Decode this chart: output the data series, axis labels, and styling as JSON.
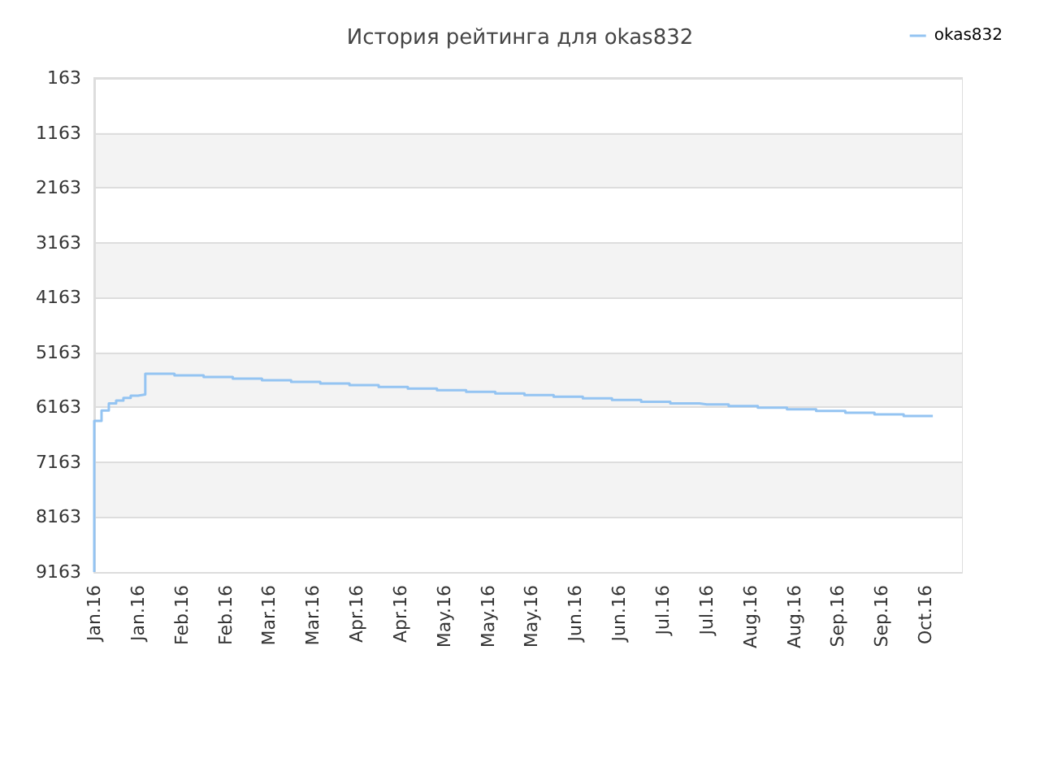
{
  "chart_data": {
    "type": "step",
    "title": "История рейтинга для okas832",
    "categories": [
      "Jan.16",
      null,
      null,
      null,
      null,
      null,
      "Jan.16",
      null,
      null,
      null,
      null,
      null,
      "Feb.16",
      null,
      null,
      null,
      null,
      null,
      "Feb.16",
      null,
      null,
      null,
      null,
      null,
      "Mar.16",
      null,
      null,
      null,
      null,
      null,
      "Mar.16",
      null,
      null,
      null,
      null,
      null,
      "Apr.16",
      null,
      null,
      null,
      null,
      null,
      "Apr.16",
      null,
      null,
      null,
      null,
      null,
      "May.16",
      null,
      null,
      null,
      null,
      null,
      "May.16",
      null,
      null,
      null,
      null,
      null,
      "May.16",
      null,
      null,
      null,
      null,
      null,
      "Jun.16",
      null,
      null,
      null,
      null,
      null,
      "Jun.16",
      null,
      null,
      null,
      null,
      null,
      "Jul.16",
      null,
      null,
      null,
      null,
      null,
      "Jul.16",
      null,
      null,
      null,
      null,
      null,
      "Aug.16",
      null,
      null,
      null,
      null,
      null,
      "Aug.16",
      null,
      null,
      null,
      null,
      null,
      "Sep.16",
      null,
      null,
      null,
      null,
      null,
      "Sep.16",
      null,
      null,
      null,
      null,
      null,
      "Oct.16",
      null,
      null,
      null,
      null,
      null
    ],
    "series": [
      {
        "name": "okas832",
        "color": "#94c4f2",
        "values": [
          9163,
          6410,
          6220,
          6090,
          6040,
          5990,
          5950,
          5930,
          5550,
          5550,
          5550,
          5550,
          5580,
          5580,
          5580,
          5580,
          5610,
          5610,
          5610,
          5610,
          5640,
          5640,
          5640,
          5640,
          5670,
          5670,
          5670,
          5670,
          5700,
          5700,
          5700,
          5700,
          5730,
          5730,
          5730,
          5730,
          5760,
          5760,
          5760,
          5760,
          5790,
          5790,
          5790,
          5790,
          5820,
          5820,
          5820,
          5820,
          5850,
          5850,
          5850,
          5850,
          5880,
          5880,
          5880,
          5880,
          5910,
          5910,
          5910,
          5910,
          5940,
          5940,
          5940,
          5940,
          5970,
          5970,
          5970,
          5970,
          6000,
          6000,
          6000,
          6000,
          6030,
          6030,
          6030,
          6030,
          6060,
          6060,
          6060,
          6060,
          6090,
          6090,
          6090,
          6090,
          6110,
          6110,
          6110,
          6110,
          6140,
          6140,
          6140,
          6140,
          6170,
          6170,
          6170,
          6170,
          6200,
          6200,
          6200,
          6200,
          6230,
          6230,
          6230,
          6230,
          6260,
          6260,
          6260,
          6260,
          6290,
          6290,
          6290,
          6290,
          6320,
          6320,
          6320,
          6320,
          null,
          null,
          null,
          null
        ]
      }
    ],
    "ylim": [
      9163,
      163
    ],
    "yticks": [
      163,
      1163,
      2163,
      3163,
      4163,
      5163,
      6163,
      7163,
      8163,
      9163
    ],
    "grid": "y",
    "legend": "top right",
    "marker": "none"
  }
}
